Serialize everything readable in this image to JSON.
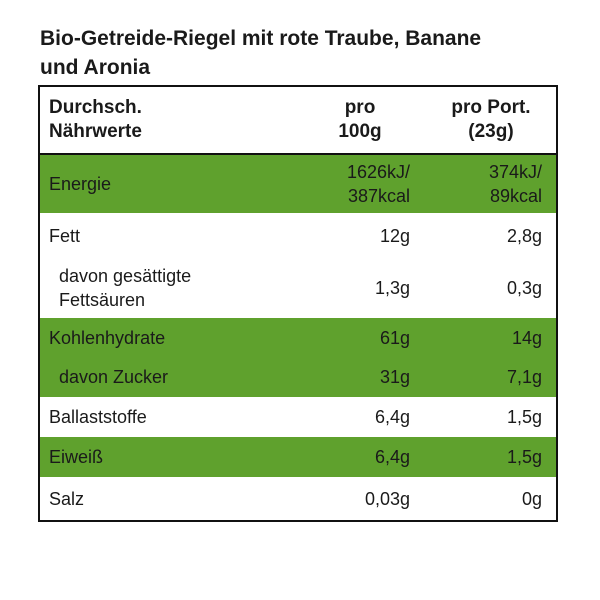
{
  "title": "Bio-Getreide-Riegel mit rote Traube, Banane\nund Aronia",
  "table": {
    "highlight_color": "#5fa12d",
    "header": [
      "Durchsch.\nNährwerte",
      "pro\n100g",
      "pro Port.\n(23g)"
    ],
    "rows": [
      {
        "cells": [
          "Energie",
          "1626kJ/\n387kcal",
          "374kJ/\n89kcal"
        ],
        "highlight": true,
        "indent": false
      },
      {
        "cells": [
          "Fett",
          "12g",
          "2,8g"
        ],
        "highlight": false,
        "indent": false
      },
      {
        "cells": [
          "davon gesättigte\nFettsäuren",
          "1,3g",
          "0,3g"
        ],
        "highlight": false,
        "indent": true
      },
      {
        "cells": [
          "Kohlenhydrate",
          "61g",
          "14g"
        ],
        "highlight": true,
        "indent": false
      },
      {
        "cells": [
          "davon Zucker",
          "31g",
          "7,1g"
        ],
        "highlight": true,
        "indent": true
      },
      {
        "cells": [
          "Ballaststoffe",
          "6,4g",
          "1,5g"
        ],
        "highlight": false,
        "indent": false
      },
      {
        "cells": [
          "Eiweiß",
          "6,4g",
          "1,5g"
        ],
        "highlight": true,
        "indent": false
      },
      {
        "cells": [
          "Salz",
          "0,03g",
          "0g"
        ],
        "highlight": false,
        "indent": false
      }
    ]
  }
}
